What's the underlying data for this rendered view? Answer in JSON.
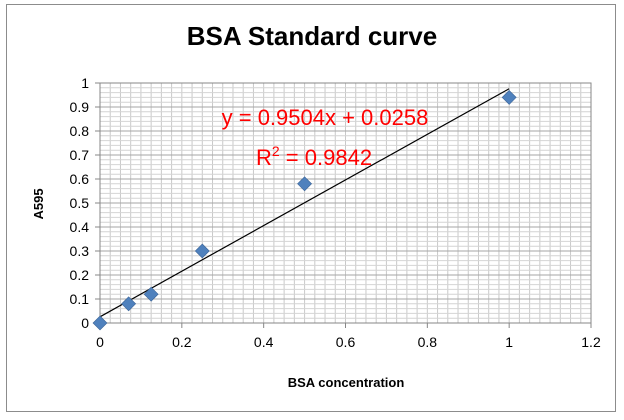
{
  "chart_data": {
    "type": "scatter",
    "title": "BSA Standard curve",
    "xlabel": "BSA concentration",
    "ylabel": "A595",
    "xlim": [
      0,
      1.2
    ],
    "ylim": [
      0,
      1
    ],
    "x_ticks": [
      "0",
      "0.2",
      "0.4",
      "0.6",
      "0.8",
      "1",
      "1.2"
    ],
    "y_ticks": [
      "0",
      "0.1",
      "0.2",
      "0.3",
      "0.4",
      "0.5",
      "0.6",
      "0.7",
      "0.8",
      "0.9",
      "1"
    ],
    "grid": true,
    "legend": "none",
    "series": [
      {
        "marker": "diamond",
        "color": "#4f81bd",
        "points": [
          {
            "x": 0,
            "y": 0
          },
          {
            "x": 0.07,
            "y": 0.08
          },
          {
            "x": 0.125,
            "y": 0.12
          },
          {
            "x": 0.25,
            "y": 0.3
          },
          {
            "x": 0.5,
            "y": 0.58
          },
          {
            "x": 1,
            "y": 0.94
          }
        ]
      }
    ],
    "trendline": {
      "type": "linear",
      "slope": 0.9504,
      "intercept": 0.0258,
      "color": "#000000",
      "equation_label": "y = 0.9504x + 0.0258",
      "r2_prefix": "R",
      "r2_sup": "2",
      "r2_suffix": " = 0.9842",
      "label_color": "#ff0000"
    }
  }
}
